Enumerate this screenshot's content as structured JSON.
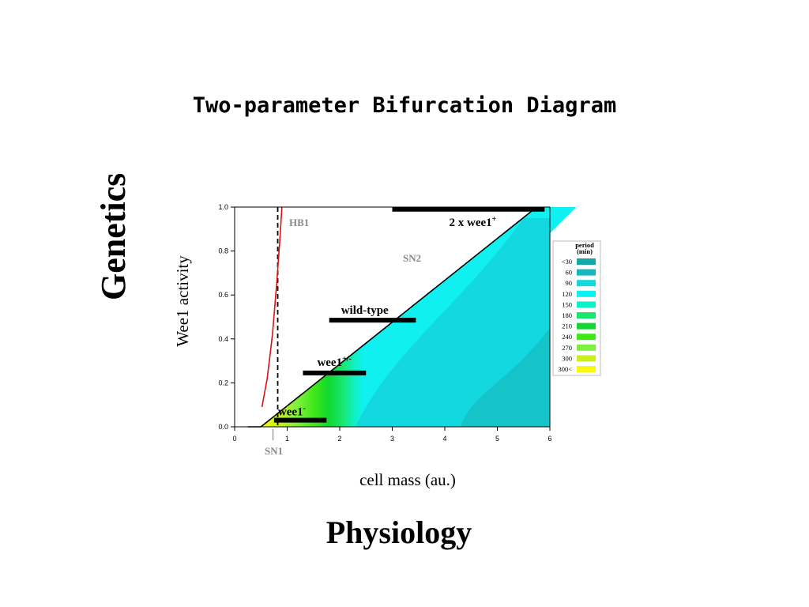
{
  "slide": {
    "title": "Two-parameter Bifurcation Diagram",
    "left_label": "Genetics",
    "bottom_label": "Physiology"
  },
  "chart_data": {
    "type": "heatmap",
    "xlabel": "cell mass (au.)",
    "ylabel": "Wee1 activity",
    "xlim": [
      0,
      6
    ],
    "ylim": [
      0,
      1
    ],
    "x_ticks": [
      "0",
      "1",
      "2",
      "3",
      "4",
      "5",
      "6"
    ],
    "y_ticks": [
      "0.0",
      "0.2",
      "0.4",
      "0.6",
      "0.8",
      "1.0"
    ],
    "grid": false,
    "legend": {
      "title_line1": "period",
      "title_line2": "(min)",
      "position": "right",
      "items": [
        {
          "label": "<30",
          "color": "#10a8a8"
        },
        {
          "label": "60",
          "color": "#14b8c0"
        },
        {
          "label": "90",
          "color": "#14d8e0"
        },
        {
          "label": "120",
          "color": "#10f0f0"
        },
        {
          "label": "150",
          "color": "#10f0c8"
        },
        {
          "label": "180",
          "color": "#18e870"
        },
        {
          "label": "210",
          "color": "#10d830"
        },
        {
          "label": "240",
          "color": "#40e818"
        },
        {
          "label": "270",
          "color": "#80f040"
        },
        {
          "label": "300",
          "color": "#c8f020"
        },
        {
          "label": "300<",
          "color": "#f8f810"
        }
      ]
    },
    "curves": {
      "sn2": {
        "label": "SN2",
        "points": [
          [
            0.5,
            0.0
          ],
          [
            5.75,
            1.0
          ]
        ]
      },
      "hb1": {
        "label": "HB1",
        "color": "#dd1111",
        "points": [
          [
            0.52,
            0.09
          ],
          [
            0.62,
            0.22
          ],
          [
            0.72,
            0.42
          ],
          [
            0.8,
            0.65
          ],
          [
            0.86,
            0.85
          ],
          [
            0.9,
            1.0
          ]
        ]
      },
      "sn1": {
        "label": "SN1",
        "x": 0.82
      }
    },
    "strains": [
      {
        "name": "wee1",
        "sup": "-",
        "x_range": [
          0.75,
          1.75
        ],
        "y": 0.03
      },
      {
        "name": "wee1",
        "sup": "+/-",
        "x_range": [
          1.3,
          2.5
        ],
        "y": 0.245
      },
      {
        "name": "wild-type",
        "sup": "",
        "x_range": [
          1.8,
          3.45
        ],
        "y": 0.485
      },
      {
        "name": "2 x wee1",
        "sup": "+",
        "x_range": [
          3.0,
          5.9
        ],
        "y": 0.99
      }
    ]
  }
}
